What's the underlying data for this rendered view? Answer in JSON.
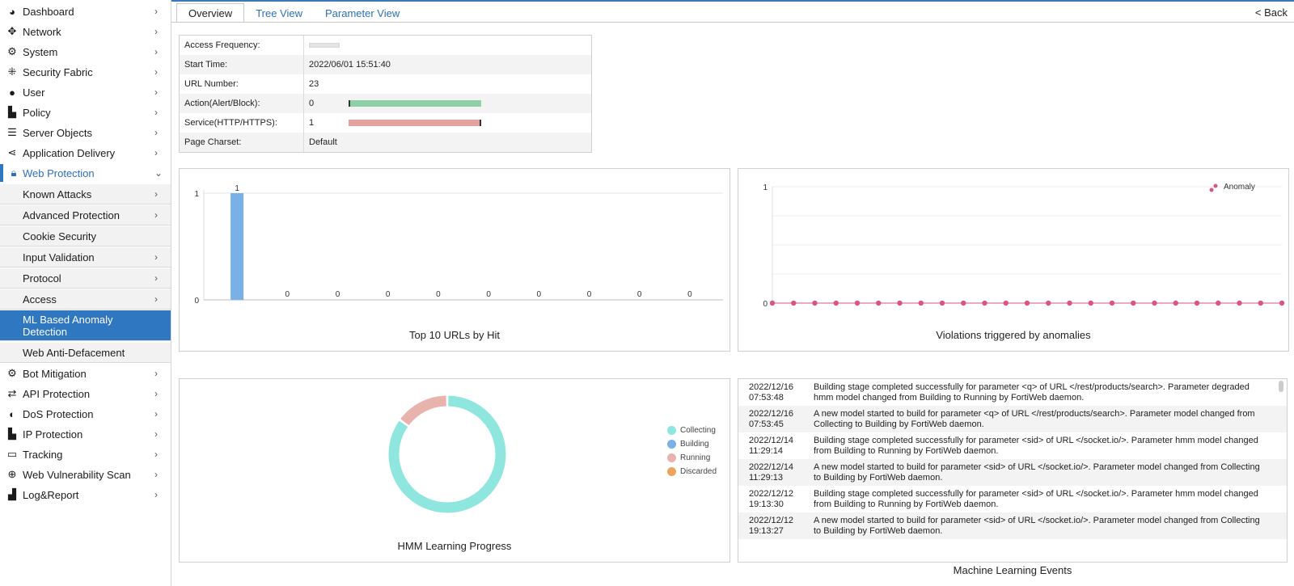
{
  "sidebar": {
    "items": [
      {
        "label": "Dashboard",
        "icon": "dashboard-icon"
      },
      {
        "label": "Network",
        "icon": "network-icon"
      },
      {
        "label": "System",
        "icon": "gear-icon"
      },
      {
        "label": "Security Fabric",
        "icon": "fabric-icon"
      },
      {
        "label": "User",
        "icon": "user-icon"
      },
      {
        "label": "Policy",
        "icon": "policy-icon"
      },
      {
        "label": "Server Objects",
        "icon": "server-icon"
      },
      {
        "label": "Application Delivery",
        "icon": "delivery-icon"
      },
      {
        "label": "Web Protection",
        "icon": "lock-icon"
      }
    ],
    "sub_items": [
      {
        "label": "Known Attacks"
      },
      {
        "label": "Advanced Protection"
      },
      {
        "label": "Cookie Security"
      },
      {
        "label": "Input Validation"
      },
      {
        "label": "Protocol"
      },
      {
        "label": "Access"
      },
      {
        "label": "ML Based Anomaly Detection"
      },
      {
        "label": "Web Anti-Defacement"
      }
    ],
    "items_after": [
      {
        "label": "Bot Mitigation",
        "icon": "bot-icon"
      },
      {
        "label": "API Protection",
        "icon": "api-icon"
      },
      {
        "label": "DoS Protection",
        "icon": "shield-icon"
      },
      {
        "label": "IP Protection",
        "icon": "ip-icon"
      },
      {
        "label": "Tracking",
        "icon": "laptop-icon"
      },
      {
        "label": "Web Vulnerability Scan",
        "icon": "scan-icon"
      },
      {
        "label": "Log&Report",
        "icon": "chart-icon"
      }
    ]
  },
  "tabs": {
    "overview": "Overview",
    "tree": "Tree View",
    "param": "Parameter View"
  },
  "back_label": "< Back",
  "info": {
    "access_freq_label": "Access Frequency:",
    "start_time_label": "Start Time:",
    "start_time": "2022/06/01 15:51:40",
    "url_number_label": "URL Number:",
    "url_number": "23",
    "action_label": "Action(Alert/Block):",
    "action": "0",
    "service_label": "Service(HTTP/HTTPS):",
    "service": "1",
    "charset_label": "Page Charset:",
    "charset": "Default"
  },
  "colors": {
    "accent": "#2f77c0",
    "bar_green": "#8fcfa8",
    "bar_red": "#e6a1a1",
    "collecting": "#8ee6df",
    "building": "#79b0e8",
    "running": "#e8b2ad",
    "discarded": "#efa25c",
    "anomaly": "#d9567f"
  },
  "chart_data": [
    {
      "type": "bar",
      "title": "Top 10 URLs by Hit",
      "values": [
        1,
        0,
        0,
        0,
        0,
        0,
        0,
        0,
        0,
        0
      ],
      "yticks": [
        "0",
        "1"
      ],
      "ylim": [
        0,
        1
      ]
    },
    {
      "type": "line",
      "title": "Violations triggered by anomalies",
      "series": [
        {
          "name": "Anomaly",
          "values": [
            0,
            0,
            0,
            0,
            0,
            0,
            0,
            0,
            0,
            0,
            0,
            0,
            0,
            0,
            0,
            0,
            0,
            0,
            0,
            0,
            0,
            0,
            0,
            0,
            0
          ]
        }
      ],
      "yticks": [
        "0",
        "1"
      ],
      "ylim": [
        0,
        1
      ],
      "legend": "top-right"
    },
    {
      "type": "pie",
      "title": "HMM Learning Progress",
      "categories": [
        "Collecting",
        "Building",
        "Running",
        "Discarded"
      ],
      "values": [
        85,
        0,
        15,
        0
      ]
    }
  ],
  "events_title": "Machine Learning Events",
  "events": [
    {
      "date": "2022/12/16",
      "time": "07:53:48",
      "msg": "Building stage completed successfully for parameter <q> of URL </rest/products/search>. Parameter degraded hmm model changed from Building to Running by FortiWeb daemon."
    },
    {
      "date": "2022/12/16",
      "time": "07:53:45",
      "msg": "A new model started to build for parameter <q> of URL </rest/products/search>. Parameter model changed from Collecting to Building by FortiWeb daemon."
    },
    {
      "date": "2022/12/14",
      "time": "11:29:14",
      "msg": "Building stage completed successfully for parameter <sid> of URL </socket.io/>. Parameter hmm model changed from Building to Running by FortiWeb daemon."
    },
    {
      "date": "2022/12/14",
      "time": "11:29:13",
      "msg": "A new model started to build for parameter <sid> of URL </socket.io/>. Parameter model changed from Collecting to Building by FortiWeb daemon."
    },
    {
      "date": "2022/12/12",
      "time": "19:13:30",
      "msg": "Building stage completed successfully for parameter <sid> of URL </socket.io/>. Parameter hmm model changed from Building to Running by FortiWeb daemon."
    },
    {
      "date": "2022/12/12",
      "time": "19:13:27",
      "msg": "A new model started to build for parameter <sid> of URL </socket.io/>. Parameter model changed from Collecting to Building by FortiWeb daemon."
    }
  ]
}
